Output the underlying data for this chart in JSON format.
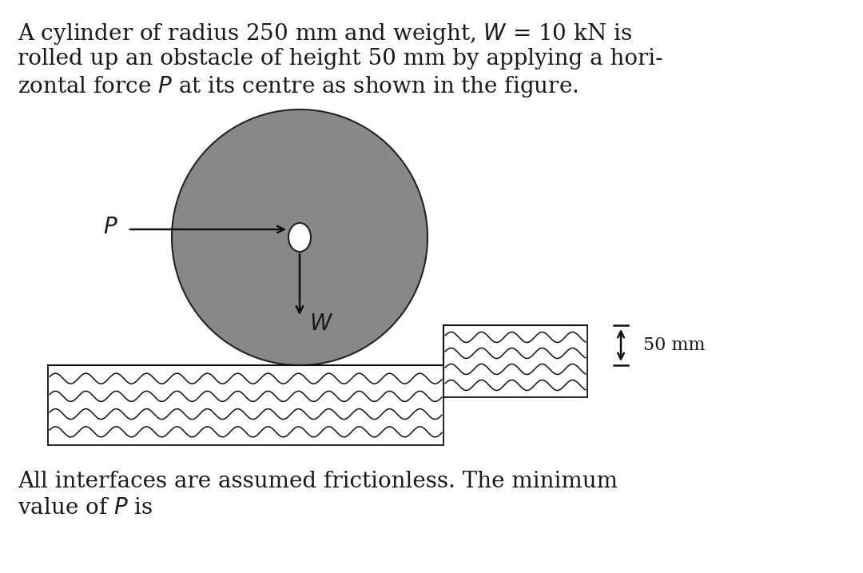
{
  "bg_color": "#ffffff",
  "text_color": "#1a1a1a",
  "title_line1": "A cylinder of radius 250 mm and weight, $W$ = 10 kN is",
  "title_line2": "rolled up an obstacle of height 50 mm by applying a hori-",
  "title_line3": "zontal force $P$ at its centre as shown in the figure.",
  "bottom_line1": "All interfaces are assumed frictionless. The minimum",
  "bottom_line2": "value of $P$ is",
  "cylinder_color": "#888888",
  "cylinder_edge_color": "#222222",
  "hub_color": "#ffffff",
  "hub_edge_color": "#222222",
  "wave_color": "#111111",
  "wave_bg": "#ffffff",
  "arrow_color": "#111111",
  "dim_color": "#111111",
  "font_size_text": 20,
  "font_size_label": 18,
  "font_size_dim": 16
}
